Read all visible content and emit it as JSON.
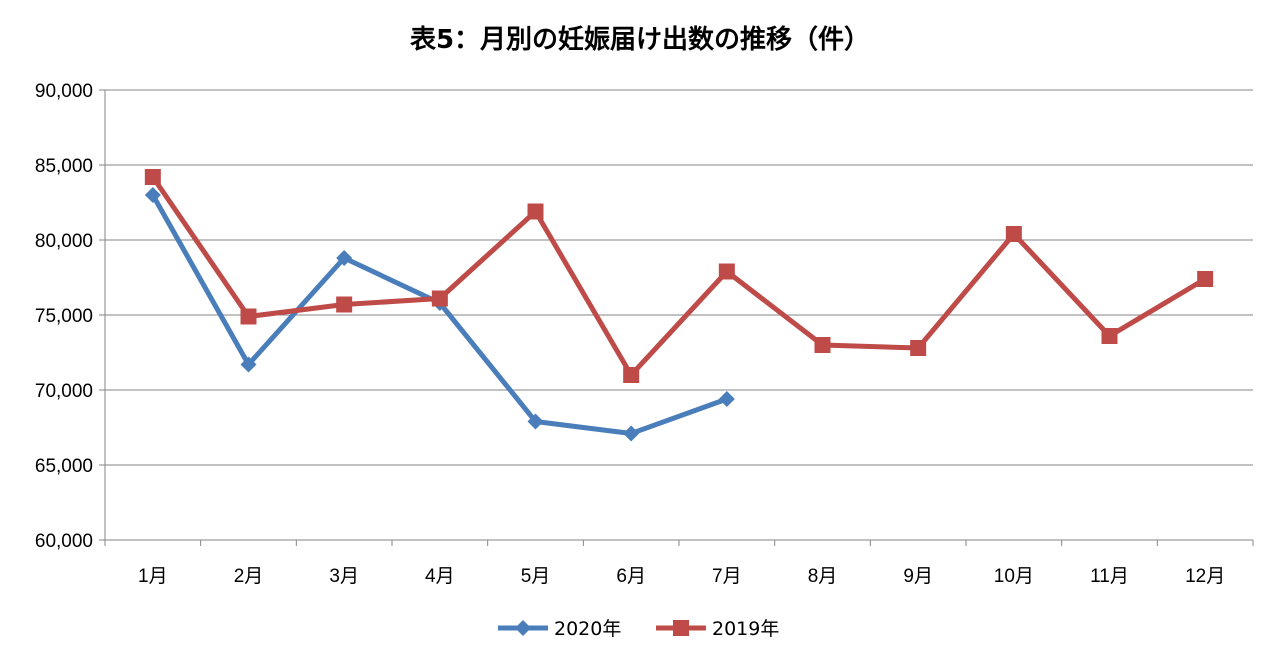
{
  "chart_data": {
    "type": "line",
    "title": "表5：月別の妊娠届け出数の推移（件）",
    "xlabel": "",
    "ylabel": "",
    "categories": [
      "1月",
      "2月",
      "3月",
      "4月",
      "5月",
      "6月",
      "7月",
      "8月",
      "9月",
      "10月",
      "11月",
      "12月"
    ],
    "ylim": [
      60000,
      90000
    ],
    "yticks": [
      60000,
      65000,
      70000,
      75000,
      80000,
      85000,
      90000
    ],
    "ytick_labels": [
      "60,000",
      "65,000",
      "70,000",
      "75,000",
      "80,000",
      "85,000",
      "90,000"
    ],
    "grid": true,
    "legend_position": "bottom",
    "series": [
      {
        "name": "2020年",
        "color": "#4a7ebb",
        "marker": "diamond",
        "values": [
          83000,
          71700,
          78800,
          75800,
          67900,
          67100,
          69400,
          null,
          null,
          null,
          null,
          null
        ]
      },
      {
        "name": "2019年",
        "color": "#be4b48",
        "marker": "square",
        "values": [
          84200,
          74900,
          75700,
          76100,
          81900,
          71000,
          77900,
          73000,
          72800,
          80400,
          73600,
          77400
        ]
      }
    ]
  }
}
